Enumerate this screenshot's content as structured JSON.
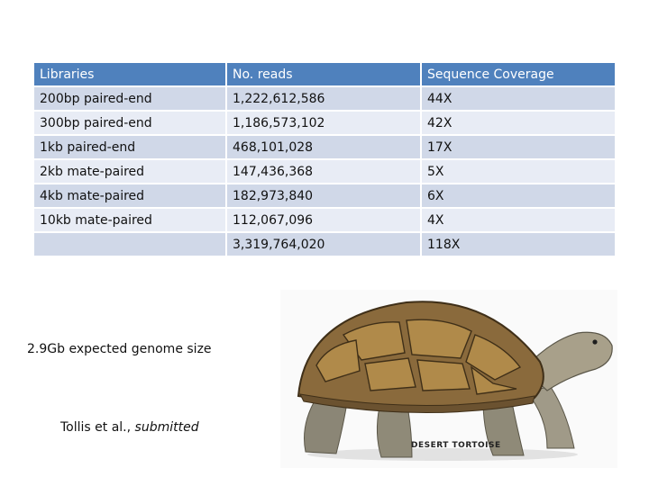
{
  "table": {
    "headers": [
      "Libraries",
      "No. reads",
      "Sequence Coverage"
    ],
    "rows": [
      [
        "200bp paired-end",
        "1,222,612,586",
        "44X"
      ],
      [
        "300bp paired-end",
        "1,186,573,102",
        "42X"
      ],
      [
        "1kb paired-end",
        "468,101,028",
        "17X"
      ],
      [
        "2kb mate-paired",
        "147,436,368",
        "5X"
      ],
      [
        "4kb mate-paired",
        "182,973,840",
        "6X"
      ],
      [
        "10kb mate-paired",
        "112,067,096",
        "4X"
      ],
      [
        "",
        "3,319,764,020",
        "118X"
      ]
    ],
    "colors": {
      "header": "#4f81bd",
      "row_light": "#e8ecf5",
      "row_dark": "#d0d8e8"
    }
  },
  "genome_note": "2.9Gb expected genome size",
  "citation": {
    "authors": "Tollis et al., ",
    "status": "submitted"
  },
  "image": {
    "caption": "DESERT TORTOISE"
  }
}
